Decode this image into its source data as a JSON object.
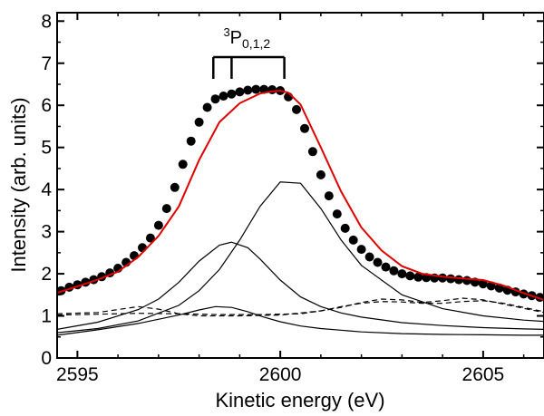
{
  "chart_data": {
    "type": "scatter",
    "title": "",
    "xlabel": "Kinetic energy (eV)",
    "ylabel": "Intensity (arb. units)",
    "xlim": [
      2594.5,
      2606.5
    ],
    "ylim": [
      0,
      8.2
    ],
    "x_ticks": [
      2595,
      2600,
      2605
    ],
    "y_ticks": [
      0,
      1,
      2,
      3,
      4,
      5,
      6,
      7,
      8
    ],
    "grid": false,
    "legend": "none",
    "annotation": {
      "label_main": "P",
      "label_sup": "3",
      "label_sub": "0,1,2",
      "bracket_x": [
        2598.35,
        2598.8,
        2600.1
      ]
    },
    "colors": {
      "points": "#000000",
      "fit": "#e00000",
      "components": "#000000",
      "background": "#000000"
    },
    "series": [
      {
        "kind": "points",
        "x": [
          2594.6,
          2594.8,
          2595.0,
          2595.2,
          2595.4,
          2595.6,
          2595.8,
          2596.0,
          2596.2,
          2596.4,
          2596.6,
          2596.8,
          2597.0,
          2597.2,
          2597.4,
          2597.6,
          2597.8,
          2598.0,
          2598.2,
          2598.4,
          2598.6,
          2598.8,
          2599.0,
          2599.2,
          2599.4,
          2599.6,
          2599.8,
          2600.0,
          2600.2,
          2600.4,
          2600.6,
          2600.8,
          2601.0,
          2601.2,
          2601.4,
          2601.6,
          2601.8,
          2602.0,
          2602.2,
          2602.4,
          2602.6,
          2602.8,
          2603.0,
          2603.2,
          2603.4,
          2603.6,
          2603.8,
          2604.0,
          2604.2,
          2604.4,
          2604.6,
          2604.8,
          2605.0,
          2605.2,
          2605.4,
          2605.6,
          2605.8,
          2606.0,
          2606.2,
          2606.4
        ],
        "y": [
          1.6,
          1.68,
          1.74,
          1.8,
          1.86,
          1.93,
          2.02,
          2.13,
          2.27,
          2.43,
          2.62,
          2.85,
          3.15,
          3.55,
          4.05,
          4.6,
          5.15,
          5.6,
          5.95,
          6.15,
          6.22,
          6.27,
          6.32,
          6.36,
          6.38,
          6.38,
          6.37,
          6.35,
          6.2,
          5.9,
          5.45,
          4.9,
          4.35,
          3.85,
          3.42,
          3.08,
          2.8,
          2.58,
          2.4,
          2.27,
          2.16,
          2.07,
          2.0,
          1.95,
          1.92,
          1.91,
          1.9,
          1.9,
          1.88,
          1.86,
          1.84,
          1.8,
          1.76,
          1.71,
          1.66,
          1.61,
          1.57,
          1.52,
          1.48,
          1.44
        ]
      },
      {
        "kind": "fit",
        "x": [
          2594.5,
          2595.0,
          2595.5,
          2596.0,
          2596.5,
          2597.0,
          2597.5,
          2598.0,
          2598.5,
          2599.0,
          2599.5,
          2599.8,
          2600.0,
          2600.2,
          2600.5,
          2601.0,
          2601.5,
          2602.0,
          2602.5,
          2603.0,
          2603.5,
          2604.0,
          2604.5,
          2605.0,
          2605.5,
          2606.0,
          2606.5
        ],
        "y": [
          1.55,
          1.7,
          1.86,
          2.05,
          2.4,
          2.9,
          3.6,
          4.7,
          5.6,
          6.05,
          6.28,
          6.33,
          6.35,
          6.3,
          6.02,
          5.0,
          3.95,
          3.1,
          2.55,
          2.18,
          2.0,
          1.93,
          1.89,
          1.85,
          1.72,
          1.54,
          1.38
        ]
      },
      {
        "kind": "component",
        "x": [
          2594.5,
          2595.5,
          2596.5,
          2597.0,
          2597.5,
          2598.0,
          2598.5,
          2598.8,
          2599.2,
          2599.5,
          2600.0,
          2600.5,
          2601.0,
          2601.5,
          2602.0,
          2603.0,
          2604.0,
          2605.0,
          2606.0,
          2606.5
        ],
        "y": [
          0.68,
          0.85,
          1.15,
          1.4,
          1.8,
          2.3,
          2.68,
          2.75,
          2.62,
          2.35,
          1.85,
          1.45,
          1.22,
          1.07,
          0.97,
          0.84,
          0.77,
          0.72,
          0.69,
          0.68
        ]
      },
      {
        "kind": "component",
        "x": [
          2594.5,
          2595.5,
          2596.5,
          2597.5,
          2598.0,
          2598.5,
          2599.0,
          2599.5,
          2600.0,
          2600.5,
          2601.0,
          2601.5,
          2602.0,
          2603.0,
          2604.0,
          2605.0,
          2606.0,
          2606.5
        ],
        "y": [
          0.6,
          0.7,
          0.88,
          1.25,
          1.6,
          2.1,
          2.8,
          3.6,
          4.18,
          4.15,
          3.55,
          2.8,
          2.2,
          1.5,
          1.17,
          1.0,
          0.9,
          0.87
        ]
      },
      {
        "kind": "component",
        "x": [
          2594.5,
          2595.5,
          2596.5,
          2597.5,
          2598.0,
          2598.4,
          2598.8,
          2599.2,
          2599.6,
          2600.0,
          2600.5,
          2601.0,
          2602.0,
          2603.0,
          2604.0,
          2605.0,
          2606.0,
          2606.5
        ],
        "y": [
          0.54,
          0.67,
          0.82,
          1.02,
          1.14,
          1.22,
          1.2,
          1.1,
          0.97,
          0.86,
          0.76,
          0.7,
          0.62,
          0.58,
          0.56,
          0.55,
          0.54,
          0.54
        ]
      },
      {
        "kind": "background",
        "x": [
          2594.5,
          2595.5,
          2596.0,
          2596.5,
          2597.0,
          2597.5,
          2598.0,
          2599.0,
          2600.0,
          2601.0,
          2601.5,
          2602.0,
          2602.5,
          2603.0,
          2603.5,
          2604.0,
          2604.5,
          2605.0,
          2605.5,
          2606.0,
          2606.5
        ],
        "y": [
          1.05,
          1.08,
          1.15,
          1.22,
          1.16,
          1.05,
          1.0,
          1.0,
          1.02,
          1.12,
          1.2,
          1.32,
          1.4,
          1.38,
          1.32,
          1.36,
          1.42,
          1.38,
          1.28,
          1.18,
          1.08
        ]
      },
      {
        "kind": "background",
        "x": [
          2594.5,
          2595.5,
          2596.5,
          2597.5,
          2598.5,
          2599.5,
          2600.5,
          2601.0,
          2601.5,
          2602.0,
          2602.5,
          2603.0,
          2603.5,
          2604.0,
          2604.5,
          2605.0,
          2605.5,
          2606.0,
          2606.5
        ],
        "y": [
          1.02,
          1.04,
          1.06,
          1.05,
          1.03,
          1.03,
          1.05,
          1.12,
          1.22,
          1.3,
          1.34,
          1.33,
          1.3,
          1.3,
          1.34,
          1.36,
          1.3,
          1.2,
          1.1
        ]
      }
    ]
  }
}
